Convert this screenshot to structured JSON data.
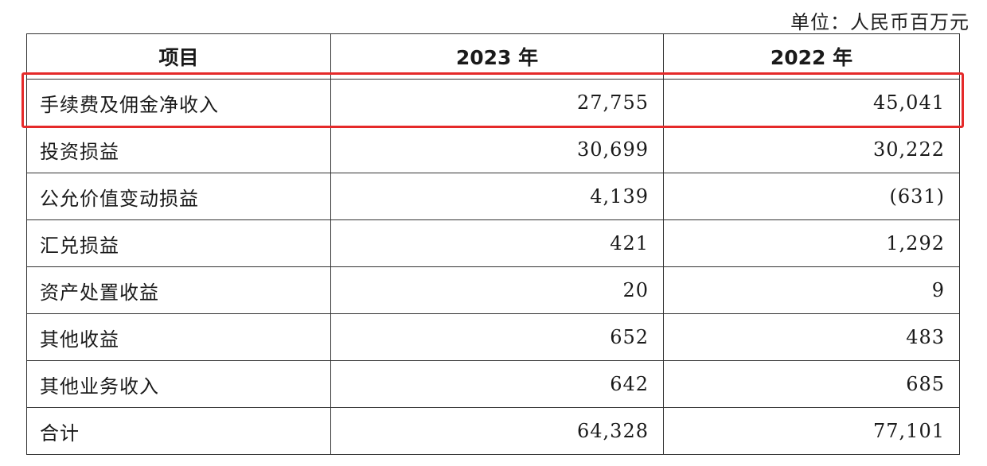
{
  "unit_label": "单位：人民币百万元",
  "table": {
    "headers": [
      "项目",
      "2023 年",
      "2022 年"
    ],
    "rows": [
      {
        "item": "手续费及佣金净收入",
        "y2023": "27,755",
        "y2022": "45,041",
        "highlighted": true
      },
      {
        "item": "投资损益",
        "y2023": "30,699",
        "y2022": "30,222"
      },
      {
        "item": "公允价值变动损益",
        "y2023": "4,139",
        "y2022": "(631)"
      },
      {
        "item": "汇兑损益",
        "y2023": "421",
        "y2022": "1,292"
      },
      {
        "item": "资产处置收益",
        "y2023": "20",
        "y2022": "9"
      },
      {
        "item": "其他收益",
        "y2023": "652",
        "y2022": "483"
      },
      {
        "item": "其他业务收入",
        "y2023": "642",
        "y2022": "685"
      },
      {
        "item": "合计",
        "y2023": "64,328",
        "y2022": "77,101"
      }
    ]
  },
  "colors": {
    "highlight_border": "#e52a2a",
    "grid": "#333333",
    "text": "#1a1a1a"
  }
}
